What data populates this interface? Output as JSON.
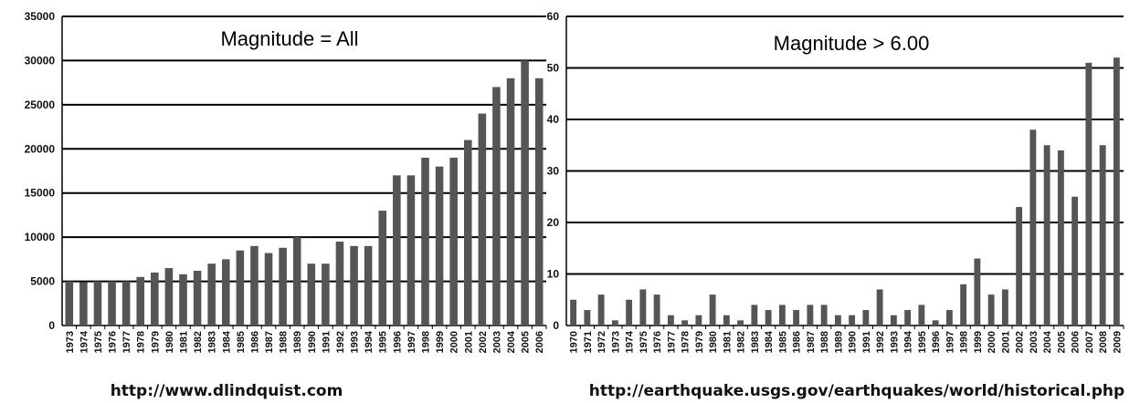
{
  "chart_data": [
    {
      "type": "bar",
      "title": "Magnitude = All",
      "source": "http://www.dlindquist.com",
      "ylim": [
        0,
        35000
      ],
      "yticks": [
        0,
        5000,
        10000,
        15000,
        20000,
        25000,
        30000,
        35000
      ],
      "grid": true,
      "categories": [
        "1973",
        "1974",
        "1975",
        "1976",
        "1977",
        "1978",
        "1979",
        "1980",
        "1981",
        "1982",
        "1983",
        "1984",
        "1985",
        "1986",
        "1987",
        "1988",
        "1989",
        "1990",
        "1991",
        "1992",
        "1993",
        "1994",
        "1995",
        "1996",
        "1997",
        "1998",
        "1999",
        "2000",
        "2001",
        "2002",
        "2003",
        "2004",
        "2005",
        "2006"
      ],
      "values": [
        5000,
        4900,
        5000,
        5000,
        5000,
        5500,
        6000,
        6500,
        5800,
        6200,
        7000,
        7500,
        8500,
        9000,
        8200,
        8800,
        10000,
        7000,
        7000,
        9500,
        9000,
        9000,
        13000,
        17000,
        17000,
        19000,
        18000,
        19000,
        21000,
        24000,
        27000,
        28000,
        30000,
        28000
      ]
    },
    {
      "type": "bar",
      "title": "Magnitude > 6.00",
      "source": "http://earthquake.usgs.gov/earthquakes/world/historical.php",
      "ylim": [
        0,
        60
      ],
      "yticks": [
        0,
        10,
        20,
        30,
        40,
        50,
        60
      ],
      "grid": true,
      "categories": [
        "1970",
        "1971",
        "1972",
        "1973",
        "1974",
        "1975",
        "1976",
        "1977",
        "1978",
        "1979",
        "1980",
        "1981",
        "1982",
        "1983",
        "1984",
        "1985",
        "1986",
        "1987",
        "1988",
        "1989",
        "1990",
        "1991",
        "1992",
        "1993",
        "1994",
        "1995",
        "1996",
        "1997",
        "1998",
        "1999",
        "2000",
        "2001",
        "2002",
        "2003",
        "2004",
        "2005",
        "2006",
        "2007",
        "2008",
        "2009"
      ],
      "values": [
        5,
        3,
        6,
        1,
        5,
        7,
        6,
        2,
        1,
        2,
        6,
        2,
        1,
        4,
        3,
        4,
        3,
        4,
        4,
        2,
        2,
        3,
        7,
        2,
        3,
        4,
        1,
        3,
        8,
        13,
        6,
        7,
        23,
        38,
        35,
        34,
        25,
        51,
        35,
        52
      ]
    }
  ]
}
